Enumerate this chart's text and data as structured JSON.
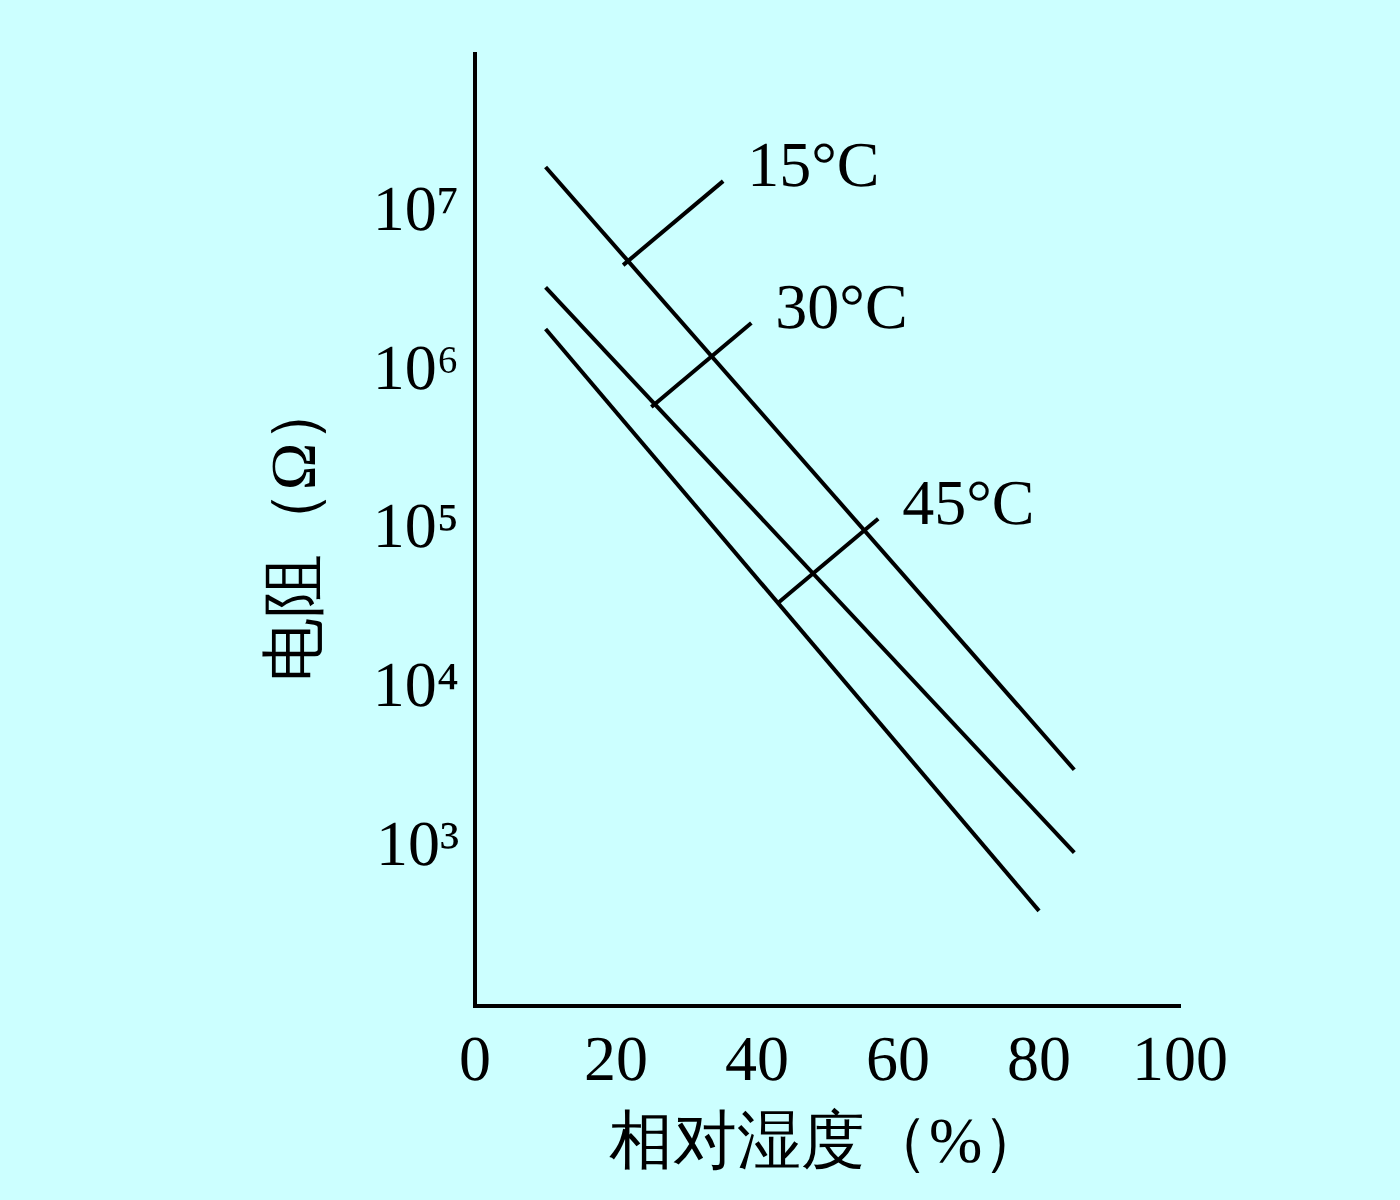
{
  "chart_data": {
    "type": "line",
    "xlabel": "相对湿度（%）",
    "ylabel": "电阻（Ω）",
    "xlim": [
      0,
      100
    ],
    "xticks": [
      0,
      20,
      40,
      60,
      80,
      100
    ],
    "ylim": [
      100,
      100000000
    ],
    "log": "y",
    "yticks": [
      {
        "value": 1000,
        "label": "10³"
      },
      {
        "value": 10000,
        "label": "10⁴"
      },
      {
        "value": 100000,
        "label": "10⁵"
      },
      {
        "value": 1000000,
        "label": "10⁶"
      },
      {
        "value": 10000000,
        "label": "10⁷"
      }
    ],
    "grid": false,
    "legend": false,
    "marker": "none",
    "line_style": "solid",
    "series": [
      {
        "color": "#000000",
        "x": [
          10,
          85
        ],
        "values": [
          19500000,
          3100
        ]
      },
      {
        "color": "#000000",
        "x": [
          10,
          85
        ],
        "values": [
          3400000,
          930
        ]
      },
      {
        "color": "#000000",
        "x": [
          10,
          80
        ],
        "values": [
          1860000,
          400
        ]
      }
    ],
    "annotations": [
      {
        "text": "15°C",
        "x": 21,
        "y": 4700000
      },
      {
        "text": "30°C",
        "x": 25,
        "y": 600000
      },
      {
        "text": "45°C",
        "x": 43,
        "y": 35000
      }
    ]
  }
}
